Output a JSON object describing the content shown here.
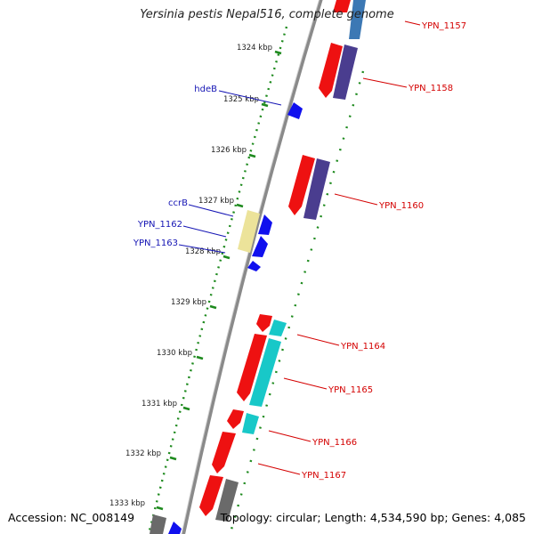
{
  "title": "Yersinia pestis Nepal516, complete genome",
  "accession": "Accession: NC_008149",
  "summary": "Topology: circular; Length: 4,534,590 bp; Genes: 4,085",
  "colors": {
    "backbone": "#8a8a8a",
    "ticks_green": "#1e8a1e",
    "label_red": "#d40000",
    "label_blue": "#1414b4",
    "feature_red": "#ee1111",
    "feature_purple": "#4a3d8f",
    "feature_cyan": "#18c8c8",
    "feature_blue": "#1010ee",
    "feature_grey": "#6a6a6a",
    "feature_yellow": "#ece39a",
    "feature_steelblue": "#3c78b4"
  },
  "kbp_ticks": [
    {
      "label": "1324 kbp"
    },
    {
      "label": "1325 kbp"
    },
    {
      "label": "1326 kbp"
    },
    {
      "label": "1327 kbp"
    },
    {
      "label": "1328 kbp"
    },
    {
      "label": "1329 kbp"
    },
    {
      "label": "1330 kbp"
    },
    {
      "label": "1331 kbp"
    },
    {
      "label": "1332 kbp"
    },
    {
      "label": "1333 kbp"
    }
  ],
  "gene_labels_right": [
    {
      "name": "YPN_1157"
    },
    {
      "name": "YPN_1158"
    },
    {
      "name": "YPN_1160"
    },
    {
      "name": "YPN_1164"
    },
    {
      "name": "YPN_1165"
    },
    {
      "name": "YPN_1166"
    },
    {
      "name": "YPN_1167"
    }
  ],
  "gene_labels_left": [
    {
      "name": "hdeB"
    },
    {
      "name": "ccrB"
    },
    {
      "name": "YPN_1162"
    },
    {
      "name": "YPN_1163"
    }
  ]
}
